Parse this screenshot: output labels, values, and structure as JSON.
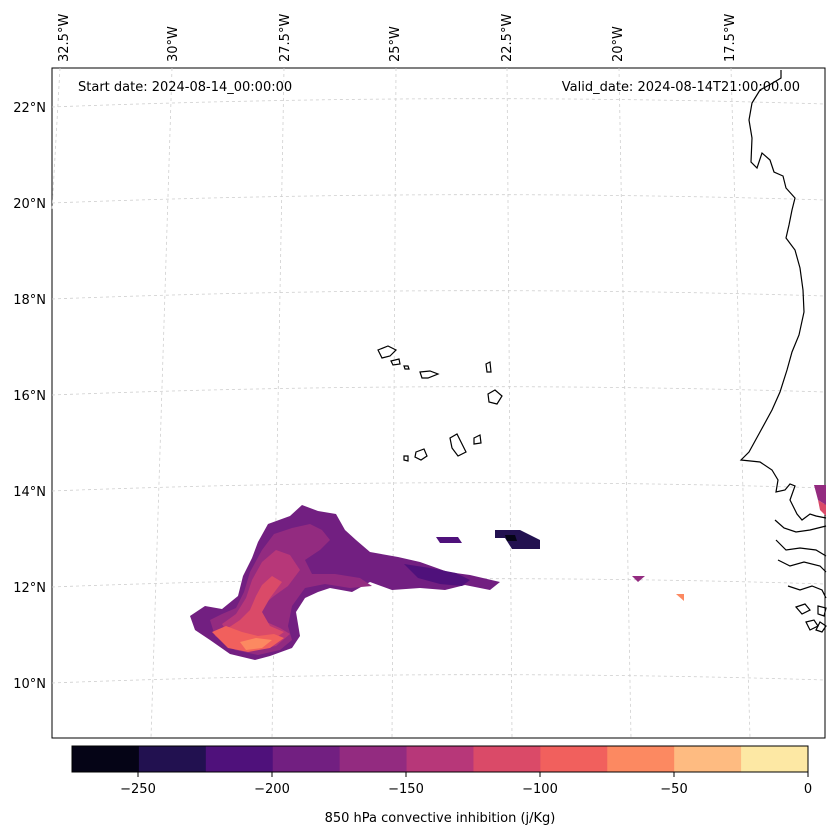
{
  "header": {
    "start_date": "Start date: 2024-08-14_00:00:00",
    "valid_date": "Valid_date: 2024-08-14T21:00:00.00"
  },
  "axes": {
    "longitude_labels": [
      "32.5°W",
      "30°W",
      "27.5°W",
      "25°W",
      "22.5°W",
      "20°W",
      "17.5°W"
    ],
    "latitude_labels": [
      "22°N",
      "20°N",
      "18°N",
      "16°N",
      "14°N",
      "12°N",
      "10°N"
    ]
  },
  "colorbar": {
    "title": "850 hPa convective inhibition (j/Kg)",
    "ticks": [
      "−250",
      "−200",
      "−150",
      "−100",
      "−50",
      "0"
    ],
    "colors": [
      "#050416",
      "#221150",
      "#4f117b",
      "#721f81",
      "#932b80",
      "#b73779",
      "#da4a68",
      "#f1605d",
      "#fc8961",
      "#febb81",
      "#fde8a4"
    ]
  },
  "chart_data": {
    "type": "heatmap",
    "variable": "850 hPa convective inhibition",
    "units": "j/Kg",
    "lon_range": [
      -33,
      -16.5
    ],
    "lat_range": [
      9,
      22.5
    ],
    "levels": [
      -275,
      -250,
      -225,
      -200,
      -175,
      -150,
      -125,
      -100,
      -75,
      -50,
      -25,
      0
    ]
  }
}
